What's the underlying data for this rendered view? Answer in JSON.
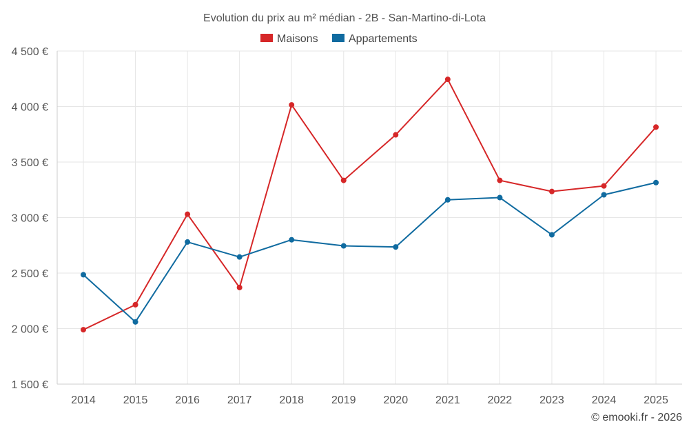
{
  "chart_data": {
    "type": "line",
    "title": "Evolution du prix au m² médian - 2B - San-Martino-di-Lota",
    "categories": [
      "2014",
      "2015",
      "2016",
      "2017",
      "2018",
      "2019",
      "2020",
      "2021",
      "2022",
      "2023",
      "2024",
      "2025"
    ],
    "series": [
      {
        "name": "Maisons",
        "color": "#d62728",
        "values": [
          1990,
          2215,
          3030,
          2370,
          4015,
          3335,
          3745,
          4245,
          3335,
          3235,
          3285,
          3815
        ]
      },
      {
        "name": "Appartements",
        "color": "#106ba0",
        "values": [
          2485,
          2060,
          2780,
          2645,
          2800,
          2745,
          2735,
          3160,
          3180,
          2845,
          3205,
          3315
        ]
      }
    ],
    "yticks": [
      1500,
      2000,
      2500,
      3000,
      3500,
      4000,
      4500
    ],
    "ytick_labels": [
      "1 500 €",
      "2 000 €",
      "2 500 €",
      "3 000 €",
      "3 500 €",
      "4 000 €",
      "4 500 €"
    ],
    "ylim": [
      1500,
      4500
    ],
    "grid": true,
    "legend_position": "top-center",
    "xlabel": "",
    "ylabel": ""
  },
  "copyright": "© emooki.fr - 2026"
}
